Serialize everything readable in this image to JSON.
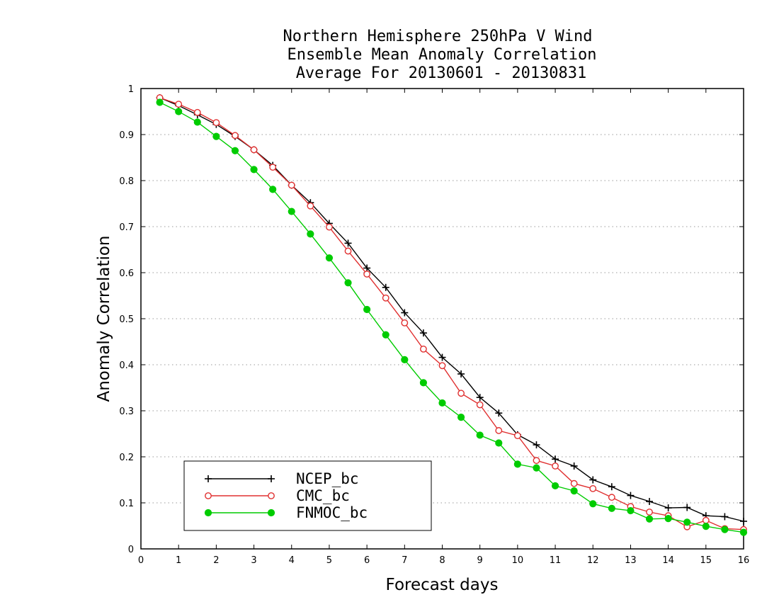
{
  "chart_data": {
    "type": "line",
    "title": [
      "Northern Hemisphere 250hPa V Wind",
      "Ensemble Mean Anomaly Correlation",
      "Average For 20130601 - 20130831"
    ],
    "xlabel": "Forecast days",
    "ylabel": "Anomaly Correlation",
    "xlim": [
      0,
      16
    ],
    "ylim": [
      0,
      1
    ],
    "xticks": [
      "0",
      "1",
      "2",
      "3",
      "4",
      "5",
      "6",
      "7",
      "8",
      "9",
      "10",
      "11",
      "12",
      "13",
      "14",
      "15",
      "16"
    ],
    "yticks": [
      "0",
      "0.1",
      "0.2",
      "0.3",
      "0.4",
      "0.5",
      "0.6",
      "0.7",
      "0.8",
      "0.9",
      "1"
    ],
    "grid": "horizontal dotted",
    "legend_position": "bottom-left",
    "x": [
      0.5,
      1,
      1.5,
      2,
      2.5,
      3,
      3.5,
      4,
      4.5,
      5,
      5.5,
      6,
      6.5,
      7,
      7.5,
      8,
      8.5,
      9,
      9.5,
      10,
      10.5,
      11,
      11.5,
      12,
      12.5,
      13,
      13.5,
      14,
      14.5,
      15,
      15.5,
      16
    ],
    "series": [
      {
        "name": "NCEP_bc",
        "color": "#000000",
        "marker": "plus",
        "values": [
          0.98,
          0.963,
          0.943,
          0.922,
          0.896,
          0.867,
          0.833,
          0.79,
          0.752,
          0.707,
          0.664,
          0.61,
          0.568,
          0.513,
          0.469,
          0.416,
          0.38,
          0.329,
          0.295,
          0.248,
          0.226,
          0.195,
          0.18,
          0.15,
          0.135,
          0.116,
          0.103,
          0.089,
          0.09,
          0.072,
          0.07,
          0.06
        ]
      },
      {
        "name": "CMC_bc",
        "color": "#e03030",
        "marker": "open-circle",
        "values": [
          0.98,
          0.966,
          0.948,
          0.926,
          0.898,
          0.867,
          0.829,
          0.79,
          0.745,
          0.699,
          0.647,
          0.597,
          0.545,
          0.491,
          0.434,
          0.398,
          0.338,
          0.313,
          0.257,
          0.246,
          0.192,
          0.18,
          0.142,
          0.131,
          0.112,
          0.092,
          0.08,
          0.072,
          0.048,
          0.062,
          0.044,
          0.042
        ]
      },
      {
        "name": "FNMOC_bc",
        "color": "#00cc00",
        "marker": "filled-circle",
        "values": [
          0.97,
          0.95,
          0.927,
          0.896,
          0.865,
          0.824,
          0.781,
          0.733,
          0.684,
          0.632,
          0.578,
          0.52,
          0.465,
          0.411,
          0.361,
          0.317,
          0.286,
          0.247,
          0.23,
          0.184,
          0.176,
          0.137,
          0.126,
          0.098,
          0.088,
          0.083,
          0.065,
          0.066,
          0.058,
          0.049,
          0.042,
          0.036
        ]
      }
    ]
  }
}
